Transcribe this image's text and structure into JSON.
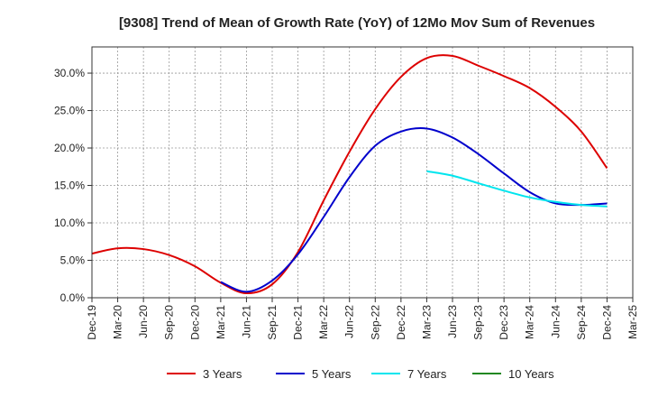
{
  "chart_data": {
    "type": "line",
    "title": "[9308]  Trend of Mean of Growth Rate (YoY) of 12Mo Mov Sum of Revenues",
    "xlabel": "",
    "ylabel": "",
    "categories": [
      "Dec-19",
      "Mar-20",
      "Jun-20",
      "Sep-20",
      "Dec-20",
      "Mar-21",
      "Jun-21",
      "Sep-21",
      "Dec-21",
      "Mar-22",
      "Jun-22",
      "Sep-22",
      "Dec-22",
      "Mar-23",
      "Jun-23",
      "Sep-23",
      "Dec-23",
      "Mar-24",
      "Jun-24",
      "Sep-24",
      "Dec-24",
      "Mar-25"
    ],
    "ylim": [
      0,
      0.335
    ],
    "yticks": [
      0.0,
      0.05,
      0.1,
      0.15,
      0.2,
      0.25,
      0.3
    ],
    "ytick_labels": [
      "0.0%",
      "5.0%",
      "10.0%",
      "15.0%",
      "20.0%",
      "25.0%",
      "30.0%"
    ],
    "grid": true,
    "legend_position": "bottom",
    "series": [
      {
        "name": "3 Years",
        "color": "#dd0000",
        "x": [
          0,
          1,
          2,
          3,
          4,
          5,
          6,
          7,
          8,
          9,
          10,
          11,
          12,
          13,
          14,
          15,
          16,
          17,
          18,
          19,
          20
        ],
        "values": [
          0.059,
          0.066,
          0.065,
          0.057,
          0.042,
          0.02,
          0.006,
          0.018,
          0.061,
          0.13,
          0.195,
          0.252,
          0.295,
          0.32,
          0.323,
          0.31,
          0.296,
          0.28,
          0.255,
          0.222,
          0.173
        ]
      },
      {
        "name": "5 Years",
        "color": "#0000cc",
        "x": [
          5,
          6,
          7,
          8,
          9,
          10,
          11,
          12,
          13,
          14,
          15,
          16,
          17,
          18,
          19,
          20
        ],
        "values": [
          0.021,
          0.008,
          0.023,
          0.058,
          0.108,
          0.161,
          0.203,
          0.222,
          0.226,
          0.214,
          0.192,
          0.166,
          0.141,
          0.126,
          0.124,
          0.126
        ]
      },
      {
        "name": "7 Years",
        "color": "#00e5ee",
        "x": [
          13,
          14,
          15,
          16,
          17,
          18,
          19,
          20
        ],
        "values": [
          0.169,
          0.163,
          0.153,
          0.143,
          0.134,
          0.128,
          0.124,
          0.122
        ]
      },
      {
        "name": "10 Years",
        "color": "#228822",
        "x": [],
        "values": []
      }
    ]
  }
}
